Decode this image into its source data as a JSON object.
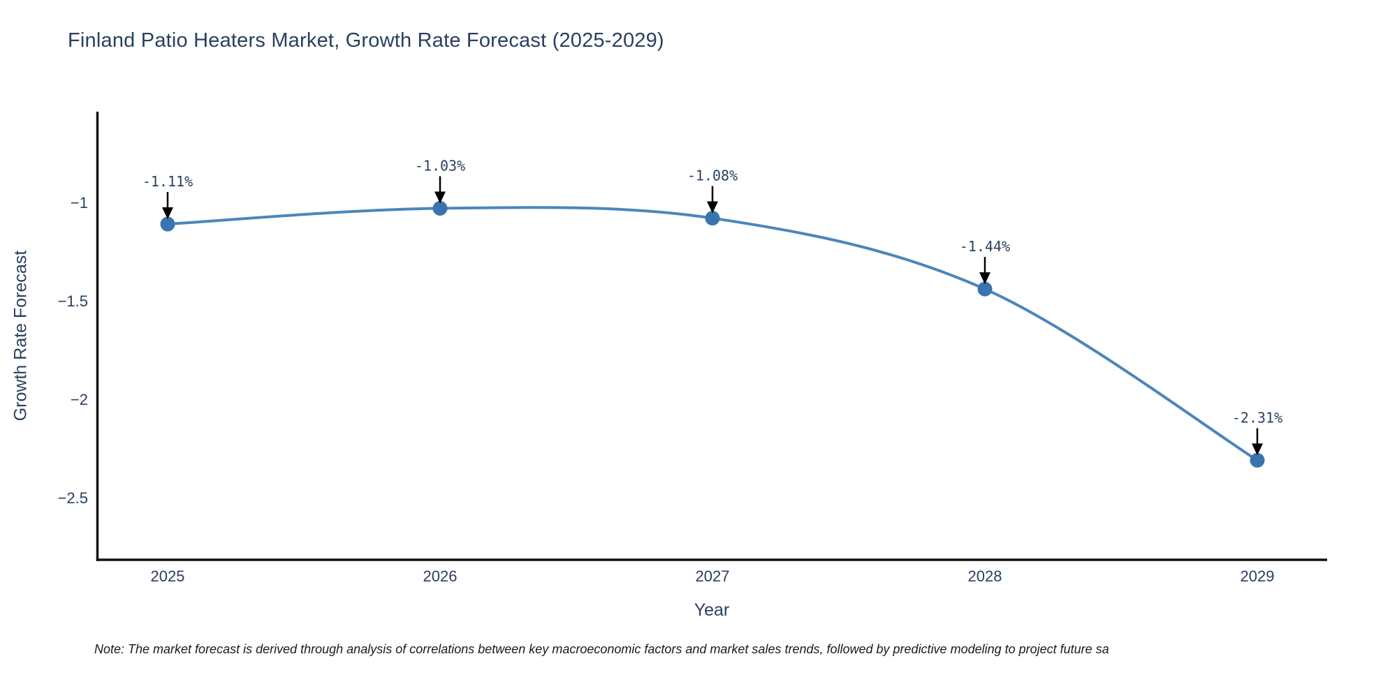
{
  "title": "Finland Patio Heaters Market, Growth Rate Forecast (2025-2029)",
  "axes": {
    "x_label": "Year",
    "y_label": "Growth Rate Forecast"
  },
  "note": "Note: The market forecast is derived through analysis of correlations between key macroeconomic factors and market sales trends, followed by predictive modeling to project future sa",
  "colors": {
    "line": "#4b86ba",
    "marker": "#3a74ae",
    "arrow": "#000000",
    "text": "#2a3f5f",
    "axis": "#111111",
    "note_text": "#1a1a1a"
  },
  "chart_data": {
    "type": "line",
    "title": "Finland Patio Heaters Market, Growth Rate Forecast (2025-2029)",
    "xlabel": "Year",
    "ylabel": "Growth Rate Forecast",
    "categories": [
      "2025",
      "2026",
      "2027",
      "2028",
      "2029"
    ],
    "values": [
      -1.11,
      -1.03,
      -1.08,
      -1.44,
      -2.31
    ],
    "point_labels": [
      "-1.11%",
      "-1.03%",
      "-1.08%",
      "-1.44%",
      "-2.31%"
    ],
    "y_tick_values": [
      -1,
      -1.5,
      -2,
      -2.5
    ],
    "y_tick_labels": [
      "−1",
      "−1.5",
      "−2",
      "−2.5"
    ],
    "ylim": [
      -2.82,
      -0.54
    ],
    "xlim": [
      2024.74,
      2029.26
    ],
    "grid": false,
    "legend_position": "none",
    "line_shape": "spline",
    "annotations_have_arrows": true
  }
}
